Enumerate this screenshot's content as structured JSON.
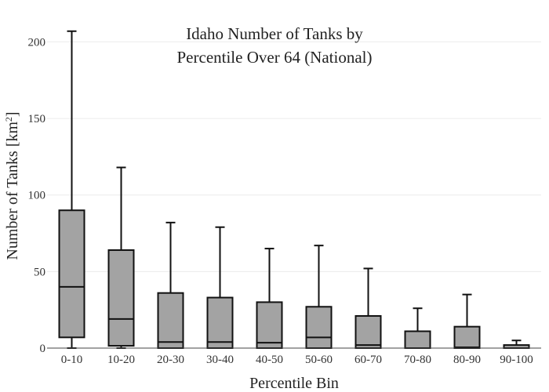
{
  "chart_data": {
    "type": "box",
    "title_lines": [
      "Idaho Number of Tanks by",
      "Percentile Over 64 (National)"
    ],
    "xlabel": "Percentile Bin",
    "ylabel_main": "Number of Tanks  [km",
    "ylabel_sup": "2",
    "ylabel_end": "]",
    "ylim": [
      0,
      212
    ],
    "yticks": [
      0,
      50,
      100,
      150,
      200
    ],
    "grid": true,
    "colors": {
      "box_fill": "#a3a3a3",
      "box_stroke": "#111111",
      "grid": "#ececec"
    },
    "categories": [
      "0-10",
      "10-20",
      "20-30",
      "30-40",
      "40-50",
      "50-60",
      "60-70",
      "70-80",
      "80-90",
      "90-100"
    ],
    "boxes": [
      {
        "category": "0-10",
        "min": 0,
        "q1": 7,
        "median": 40,
        "q3": 90,
        "max": 207
      },
      {
        "category": "10-20",
        "min": 0,
        "q1": 1.5,
        "median": 19,
        "q3": 64,
        "max": 118
      },
      {
        "category": "20-30",
        "min": 0,
        "q1": 0,
        "median": 4,
        "q3": 36,
        "max": 82
      },
      {
        "category": "30-40",
        "min": 0,
        "q1": 0,
        "median": 4,
        "q3": 33,
        "max": 79
      },
      {
        "category": "40-50",
        "min": 0,
        "q1": 0,
        "median": 3.5,
        "q3": 30,
        "max": 65
      },
      {
        "category": "50-60",
        "min": 0,
        "q1": 0,
        "median": 7,
        "q3": 27,
        "max": 67
      },
      {
        "category": "60-70",
        "min": 0,
        "q1": 0,
        "median": 2,
        "q3": 21,
        "max": 52
      },
      {
        "category": "70-80",
        "min": 0,
        "q1": 0,
        "median": 0,
        "q3": 11,
        "max": 26
      },
      {
        "category": "80-90",
        "min": 0,
        "q1": 0,
        "median": 0.5,
        "q3": 14,
        "max": 35
      },
      {
        "category": "90-100",
        "min": 0,
        "q1": 0,
        "median": 0,
        "q3": 2,
        "max": 5
      }
    ]
  }
}
